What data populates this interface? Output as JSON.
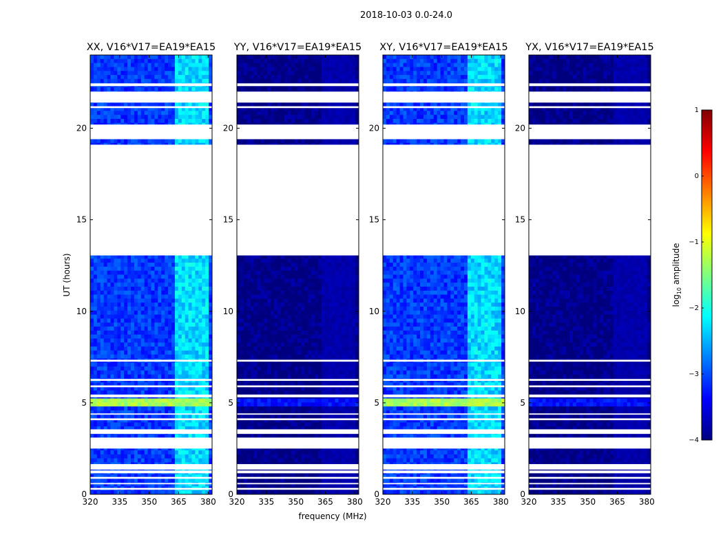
{
  "figure": {
    "suptitle": "2018-10-03 0.0-24.0",
    "ylabel": "UT (hours)",
    "xlabel": "frequency (MHz)"
  },
  "colormap": {
    "name": "jet",
    "stops": [
      "#00007f",
      "#0000ff",
      "#007fff",
      "#00ffff",
      "#7fff7f",
      "#ffff00",
      "#ff7f00",
      "#ff0000",
      "#7f0000"
    ]
  },
  "chart_data": {
    "type": "heatmap",
    "x": {
      "label": "frequency (MHz)",
      "range": [
        320,
        382
      ],
      "ticks": [
        320,
        335,
        350,
        365,
        380
      ]
    },
    "y": {
      "label": "UT (hours)",
      "range": [
        0,
        24
      ],
      "ticks": [
        0,
        5,
        10,
        15,
        20
      ]
    },
    "colorbar": {
      "label": "log10 amplitude",
      "range": [
        -4,
        1
      ],
      "ticks": [
        -4,
        -3,
        -2,
        -1,
        0,
        1
      ],
      "tick_labels": [
        "−4",
        "−3",
        "−2",
        "−1",
        "0",
        "1"
      ]
    },
    "no_data_hours": [
      [
        0.25,
        0.35
      ],
      [
        0.55,
        0.62
      ],
      [
        0.85,
        0.95
      ],
      [
        1.15,
        1.3
      ],
      [
        1.35,
        1.65
      ],
      [
        2.5,
        3.1
      ],
      [
        3.3,
        3.55
      ],
      [
        4.05,
        4.15
      ],
      [
        4.35,
        4.42
      ],
      [
        5.3,
        5.45
      ],
      [
        5.85,
        5.95
      ],
      [
        6.2,
        6.3
      ],
      [
        7.25,
        7.35
      ],
      [
        13.05,
        19.1
      ],
      [
        19.4,
        20.2
      ],
      [
        21.1,
        21.2
      ],
      [
        21.4,
        22.0
      ],
      [
        22.3,
        22.45
      ]
    ],
    "panels": [
      {
        "title": "XX, V16*V17=EA19*EA15",
        "baseline_log_amp": -3.1,
        "rfi_band_mhz": [
          363,
          380
        ],
        "rfi_peak_log_amp": -2.0,
        "burst_hours": [
          4.8,
          5.3
        ],
        "burst_log_amp": -1.3
      },
      {
        "title": "YY, V16*V17=EA19*EA15",
        "baseline_log_amp": -4.0,
        "rfi_band_mhz": [
          363,
          380
        ],
        "rfi_peak_log_amp": -3.7,
        "burst_hours": [
          4.8,
          5.3
        ],
        "burst_log_amp": -3.3
      },
      {
        "title": "XY, V16*V17=EA19*EA15",
        "baseline_log_amp": -3.1,
        "rfi_band_mhz": [
          363,
          380
        ],
        "rfi_peak_log_amp": -2.0,
        "burst_hours": [
          4.8,
          5.3
        ],
        "burst_log_amp": -1.3
      },
      {
        "title": "YX, V16*V17=EA19*EA15",
        "baseline_log_amp": -4.0,
        "rfi_band_mhz": [
          363,
          380
        ],
        "rfi_peak_log_amp": -3.7,
        "burst_hours": [
          4.8,
          5.3
        ],
        "burst_log_amp": -3.3
      }
    ]
  }
}
